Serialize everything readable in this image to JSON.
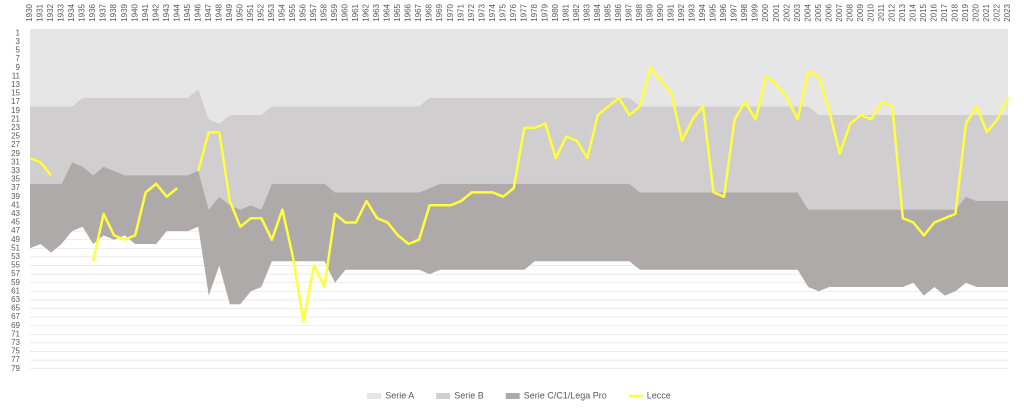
{
  "chart_data": {
    "type": "area",
    "x": [
      1930,
      1931,
      1932,
      1933,
      1934,
      1935,
      1936,
      1937,
      1938,
      1939,
      1940,
      1941,
      1942,
      1943,
      1944,
      1945,
      1946,
      1947,
      1948,
      1949,
      1950,
      1951,
      1952,
      1953,
      1954,
      1955,
      1956,
      1957,
      1958,
      1959,
      1960,
      1961,
      1962,
      1963,
      1964,
      1965,
      1966,
      1967,
      1968,
      1969,
      1970,
      1971,
      1972,
      1973,
      1974,
      1975,
      1976,
      1977,
      1978,
      1979,
      1980,
      1981,
      1982,
      1983,
      1984,
      1985,
      1986,
      1987,
      1988,
      1989,
      1990,
      1991,
      1992,
      1993,
      1994,
      1995,
      1996,
      1997,
      1998,
      1999,
      2000,
      2001,
      2002,
      2003,
      2004,
      2005,
      2006,
      2007,
      2008,
      2009,
      2010,
      2011,
      2012,
      2013,
      2014,
      2015,
      2016,
      2017,
      2018,
      2019,
      2020,
      2021,
      2022,
      2023
    ],
    "xlim": [
      1930,
      2023
    ],
    "ylim": [
      0,
      80
    ],
    "y_inverted": true,
    "yticks": [
      1,
      3,
      5,
      7,
      9,
      11,
      13,
      15,
      17,
      19,
      21,
      23,
      25,
      27,
      29,
      31,
      33,
      35,
      37,
      39,
      41,
      43,
      45,
      47,
      49,
      51,
      53,
      55,
      57,
      59,
      61,
      63,
      65,
      67,
      69,
      71,
      73,
      75,
      77,
      79
    ],
    "grid": true,
    "legend": "bottom",
    "series": [
      {
        "name": "Serie A",
        "color": "#e7e6e6",
        "type": "area",
        "values": [
          18,
          18,
          18,
          18,
          18,
          16,
          16,
          16,
          16,
          16,
          16,
          16,
          16,
          16,
          16,
          16,
          14,
          21,
          22,
          20,
          20,
          20,
          20,
          18,
          18,
          18,
          18,
          18,
          18,
          18,
          18,
          18,
          18,
          18,
          18,
          18,
          18,
          18,
          16,
          16,
          16,
          16,
          16,
          16,
          16,
          16,
          16,
          16,
          16,
          16,
          16,
          16,
          16,
          16,
          16,
          16,
          16,
          16,
          18,
          18,
          18,
          18,
          18,
          18,
          18,
          18,
          18,
          18,
          18,
          18,
          18,
          18,
          18,
          18,
          18,
          20,
          20,
          20,
          20,
          20,
          20,
          20,
          20,
          20,
          20,
          20,
          20,
          20,
          20,
          20,
          20,
          20,
          20,
          20
        ]
      },
      {
        "name": "Serie B",
        "color": "#d0cece",
        "type": "area",
        "values": [
          18,
          18,
          18,
          18,
          13,
          16,
          18,
          16,
          17,
          18,
          18,
          18,
          18,
          18,
          18,
          18,
          19,
          21,
          17,
          21,
          22,
          21,
          22,
          18,
          18,
          18,
          18,
          18,
          18,
          20,
          20,
          20,
          20,
          20,
          20,
          20,
          20,
          20,
          21,
          20,
          20,
          20,
          20,
          20,
          20,
          20,
          20,
          20,
          20,
          20,
          20,
          20,
          20,
          20,
          20,
          20,
          20,
          20,
          20,
          20,
          20,
          20,
          20,
          20,
          20,
          20,
          20,
          20,
          20,
          20,
          20,
          20,
          20,
          20,
          24,
          22,
          22,
          22,
          22,
          22,
          22,
          22,
          22,
          22,
          22,
          22,
          22,
          22,
          22,
          19,
          20,
          20,
          20,
          20
        ]
      },
      {
        "name": "Serie C/C1/Lega Pro",
        "color": "#aeaaaa",
        "type": "area",
        "values": [
          15,
          14,
          16,
          14,
          16,
          14,
          16,
          16,
          16,
          14,
          16,
          16,
          16,
          13,
          13,
          13,
          13,
          20,
          16,
          23,
          22,
          20,
          18,
          18,
          18,
          18,
          18,
          18,
          18,
          21,
          18,
          18,
          18,
          18,
          18,
          18,
          18,
          18,
          20,
          20,
          20,
          20,
          20,
          20,
          20,
          20,
          20,
          20,
          18,
          18,
          18,
          18,
          18,
          18,
          18,
          18,
          18,
          18,
          18,
          18,
          18,
          18,
          18,
          18,
          18,
          18,
          18,
          18,
          18,
          18,
          18,
          18,
          18,
          18,
          18,
          19,
          18,
          18,
          18,
          18,
          18,
          18,
          18,
          18,
          17,
          20,
          18,
          20,
          19,
          20,
          20,
          20,
          20,
          20
        ]
      },
      {
        "name": "Lecce",
        "color": "#ffff3b",
        "type": "line",
        "values": [
          30,
          31,
          34,
          null,
          null,
          null,
          54,
          43,
          48,
          49,
          48,
          38,
          36,
          39,
          37,
          null,
          33,
          24,
          24,
          40,
          46,
          44,
          44,
          49,
          42,
          53,
          68,
          55,
          60,
          43,
          45,
          45,
          40,
          44,
          45,
          48,
          50,
          49,
          41,
          41,
          41,
          40,
          38,
          38,
          38,
          39,
          37,
          23,
          23,
          22,
          30,
          25,
          26,
          30,
          20,
          18,
          16,
          20,
          18,
          9,
          12,
          15,
          26,
          21,
          18,
          38,
          39,
          21,
          17,
          21,
          11,
          13,
          16,
          21,
          10,
          11,
          19,
          29,
          22,
          20,
          21,
          17,
          18,
          44,
          45,
          48,
          45,
          44,
          43,
          22,
          18,
          24,
          21,
          16
        ]
      }
    ]
  }
}
